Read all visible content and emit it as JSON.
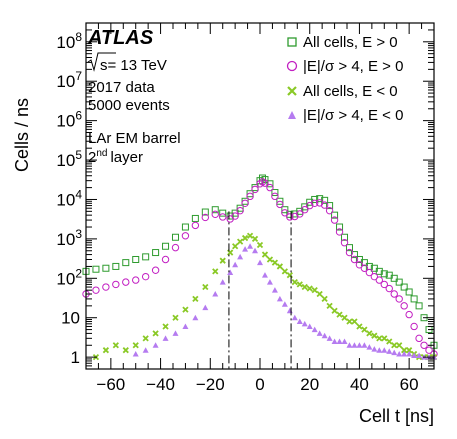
{
  "chart_data": {
    "type": "scatter",
    "title": "",
    "xlabel": "Cell t [ns]",
    "ylabel": "Cells / ns",
    "xlim": [
      -70,
      70
    ],
    "ylim": [
      0.5,
      300000000
    ],
    "yscale": "log",
    "x_ticks": [
      -60,
      -40,
      -20,
      0,
      20,
      40,
      60
    ],
    "x_tick_labels": [
      "−60",
      "−40",
      "−20",
      "0",
      "20",
      "40",
      "60"
    ],
    "y_ticks": [
      1,
      10,
      100,
      1000,
      10000,
      100000,
      1000000,
      10000000,
      100000000
    ],
    "y_tick_labels": [
      {
        "base": "1",
        "exp": ""
      },
      {
        "base": "10",
        "exp": ""
      },
      {
        "base": "10",
        "exp": "2"
      },
      {
        "base": "10",
        "exp": "3"
      },
      {
        "base": "10",
        "exp": "4"
      },
      {
        "base": "10",
        "exp": "5"
      },
      {
        "base": "10",
        "exp": "6"
      },
      {
        "base": "10",
        "exp": "7"
      },
      {
        "base": "10",
        "exp": "8"
      }
    ],
    "grid": false,
    "legend_position": "top-right",
    "vertical_lines": [
      -12.5,
      12.5
    ],
    "annotations": {
      "experiment": "ATLAS",
      "sqrt_s": "s= 13 TeV",
      "data_year": "2017 data",
      "events": "5000 events",
      "detector": "LAr EM barrel",
      "layer_num": "2",
      "layer_sup": "nd",
      "layer_word": "layer"
    },
    "series": [
      {
        "name": "All cells, E > 0",
        "marker": "open-square",
        "color": "#2e9b2e",
        "x": [
          -70,
          -66,
          -62,
          -58,
          -54,
          -50,
          -46,
          -42,
          -38,
          -34,
          -30,
          -26,
          -22,
          -18,
          -15,
          -12,
          -10,
          -8,
          -6,
          -4,
          -2,
          0,
          1,
          2,
          4,
          6,
          8,
          10,
          12,
          14,
          16,
          18,
          20,
          22,
          24,
          26,
          28,
          30,
          32,
          34,
          36,
          38,
          40,
          42,
          44,
          46,
          48,
          50,
          52,
          54,
          56,
          58,
          60,
          62,
          64,
          66,
          68,
          70
        ],
        "y": [
          150,
          170,
          180,
          200,
          250,
          300,
          350,
          450,
          650,
          1100,
          2000,
          3300,
          4800,
          5500,
          4500,
          3800,
          4500,
          6000,
          9000,
          14000,
          20000,
          30000,
          35000,
          32000,
          25000,
          15000,
          9000,
          5500,
          4200,
          4300,
          5000,
          6500,
          8500,
          10000,
          10500,
          9500,
          7000,
          4000,
          2000,
          1100,
          600,
          400,
          300,
          250,
          200,
          180,
          150,
          130,
          120,
          100,
          80,
          60,
          45,
          30,
          20,
          10,
          5,
          2
        ]
      },
      {
        "name": "|E|/σ > 4, E > 0",
        "marker": "open-circle",
        "color": "#c21fc2",
        "x": [
          -70,
          -66,
          -62,
          -58,
          -54,
          -50,
          -46,
          -42,
          -38,
          -34,
          -30,
          -26,
          -22,
          -18,
          -15,
          -12,
          -10,
          -8,
          -6,
          -4,
          -2,
          0,
          1,
          2,
          4,
          6,
          8,
          10,
          12,
          14,
          16,
          18,
          20,
          22,
          24,
          26,
          28,
          30,
          32,
          34,
          36,
          38,
          40,
          42,
          44,
          46,
          48,
          50,
          52,
          54,
          56,
          58,
          60,
          62,
          64,
          66,
          68,
          70
        ],
        "y": [
          40,
          50,
          60,
          70,
          80,
          90,
          110,
          160,
          300,
          600,
          1200,
          2200,
          3500,
          4200,
          3600,
          3200,
          3800,
          5200,
          8000,
          12000,
          18000,
          25000,
          28000,
          26000,
          20000,
          12000,
          7500,
          4600,
          3600,
          3700,
          4300,
          5500,
          7000,
          8000,
          8200,
          7200,
          5200,
          3000,
          1500,
          800,
          450,
          300,
          220,
          180,
          140,
          110,
          90,
          70,
          55,
          40,
          30,
          20,
          12,
          6,
          3,
          2,
          1.5,
          1.2
        ]
      },
      {
        "name": "All cells, E < 0",
        "marker": "cross",
        "color": "#8ac926",
        "x": [
          -66,
          -62,
          -58,
          -54,
          -50,
          -46,
          -42,
          -38,
          -34,
          -30,
          -26,
          -22,
          -18,
          -15,
          -12,
          -10,
          -8,
          -6,
          -4,
          -2,
          0,
          2,
          4,
          6,
          8,
          10,
          12,
          14,
          16,
          18,
          20,
          22,
          24,
          26,
          28,
          30,
          32,
          34,
          36,
          38,
          40,
          42,
          44,
          46,
          48,
          50,
          52,
          54,
          56,
          58,
          60,
          62,
          64,
          66,
          68,
          70
        ],
        "y": [
          1,
          1.5,
          2,
          1.5,
          2,
          3,
          4,
          6,
          10,
          16,
          30,
          60,
          150,
          280,
          450,
          650,
          850,
          1050,
          1200,
          1000,
          700,
          400,
          300,
          250,
          200,
          150,
          120,
          80,
          70,
          60,
          55,
          50,
          40,
          30,
          20,
          15,
          12,
          10,
          8,
          8,
          6,
          5,
          4,
          3.5,
          3,
          3,
          2.5,
          2,
          2,
          1.5,
          1.5,
          1.2,
          1,
          1,
          1,
          1
        ]
      },
      {
        "name": "|E|/σ > 4, E < 0",
        "marker": "triangle",
        "color": "#b57bf0",
        "x": [
          -50,
          -46,
          -42,
          -38,
          -34,
          -30,
          -26,
          -22,
          -18,
          -15,
          -12,
          -10,
          -8,
          -6,
          -4,
          -2,
          0,
          2,
          4,
          6,
          8,
          10,
          12,
          14,
          16,
          18,
          20,
          22,
          24,
          26,
          28,
          30,
          32,
          34,
          36,
          38,
          40,
          42,
          44,
          46,
          48,
          50,
          52,
          54,
          56,
          58,
          60,
          62,
          64,
          66,
          68,
          70
        ],
        "y": [
          1.2,
          1.5,
          2,
          3,
          4,
          6,
          10,
          18,
          40,
          80,
          140,
          220,
          350,
          550,
          650,
          500,
          250,
          120,
          80,
          50,
          30,
          22,
          15,
          10,
          8,
          7,
          6,
          5,
          4,
          3.5,
          3,
          2.5,
          2.5,
          2.5,
          2,
          2,
          2,
          2,
          1.8,
          1.6,
          1.5,
          1.5,
          1.4,
          1.3,
          1.2,
          1.2,
          1.2,
          1.1,
          1.1,
          1,
          1,
          1
        ]
      }
    ]
  }
}
